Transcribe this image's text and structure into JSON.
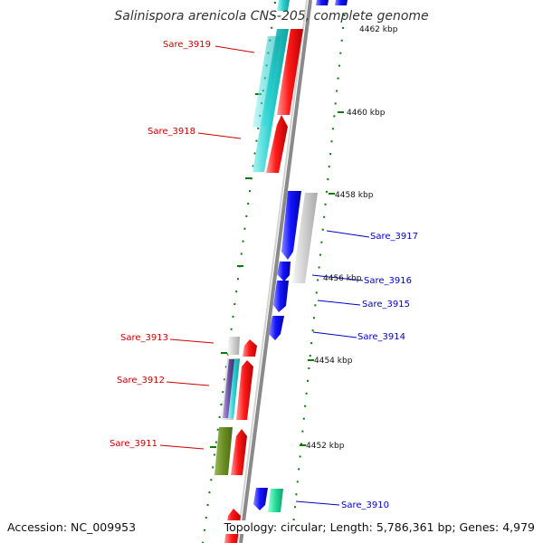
{
  "title": "Salinispora arenicola CNS-205, complete genome",
  "accession_text": "Accession: NC_009953",
  "topology_text": "Topology: circular; Length: 5,786,361 bp; Genes: 4,979",
  "colors": {
    "forward": "#ff0000",
    "reverse": "#0000ff",
    "gene_label_left": "#cc0000",
    "gene_label_right": "#0000cc",
    "backbone": "#888888",
    "dots": "#006600",
    "cyan_feature": "#2ad0d0",
    "gray_feature": "#cfcfcf",
    "olive_feature": "#6b8e23",
    "teal_feature": "#22dd99",
    "purple_feature": "#6a4fa0"
  },
  "scale_labels": [
    "4462 kbp",
    "4460 kbp",
    "4458 kbp",
    "4456 kbp",
    "4454 kbp",
    "4452 kbp"
  ],
  "genes_left": [
    "Sare_3919",
    "Sare_3918",
    "Sare_3913",
    "Sare_3912",
    "Sare_3911"
  ],
  "genes_right": [
    "Sare_3917",
    "Sare_3916",
    "Sare_3915",
    "Sare_3914",
    "Sare_3910"
  ]
}
